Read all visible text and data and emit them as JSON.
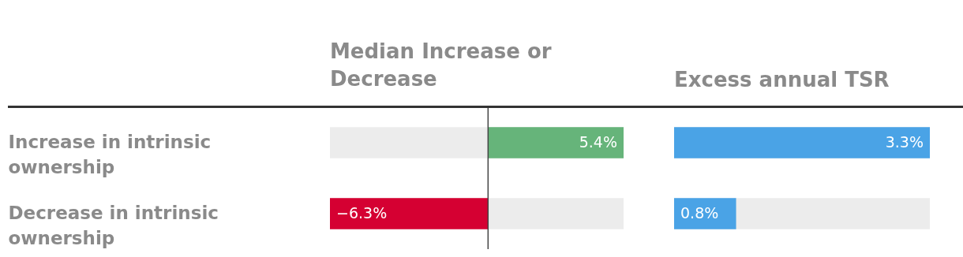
{
  "chart_data": [
    {
      "type": "bar",
      "orientation": "horizontal",
      "title": "Median Increase or Decrease",
      "categories": [
        "Increase in intrinsic ownership",
        "Decrease in intrinsic ownership"
      ],
      "values": [
        5.4,
        -6.3
      ],
      "colors": [
        "#66b47a",
        "#d50032"
      ],
      "xlim": [
        -6.3,
        5.4
      ],
      "value_labels": [
        "5.4%",
        "−6.3%"
      ],
      "ref_lines": [
        {
          "axis": "x",
          "value": 0,
          "color": "#444444"
        }
      ],
      "tick_labels": "y"
    },
    {
      "type": "bar",
      "orientation": "horizontal",
      "title": "Excess annual TSR",
      "categories": [
        null,
        null
      ],
      "values": [
        3.3,
        0.8
      ],
      "color": "#4aa3e6",
      "xlim": [
        0,
        3.3
      ],
      "value_labels": [
        "3.3%",
        "0.8%"
      ],
      "tick_labels": false
    }
  ]
}
